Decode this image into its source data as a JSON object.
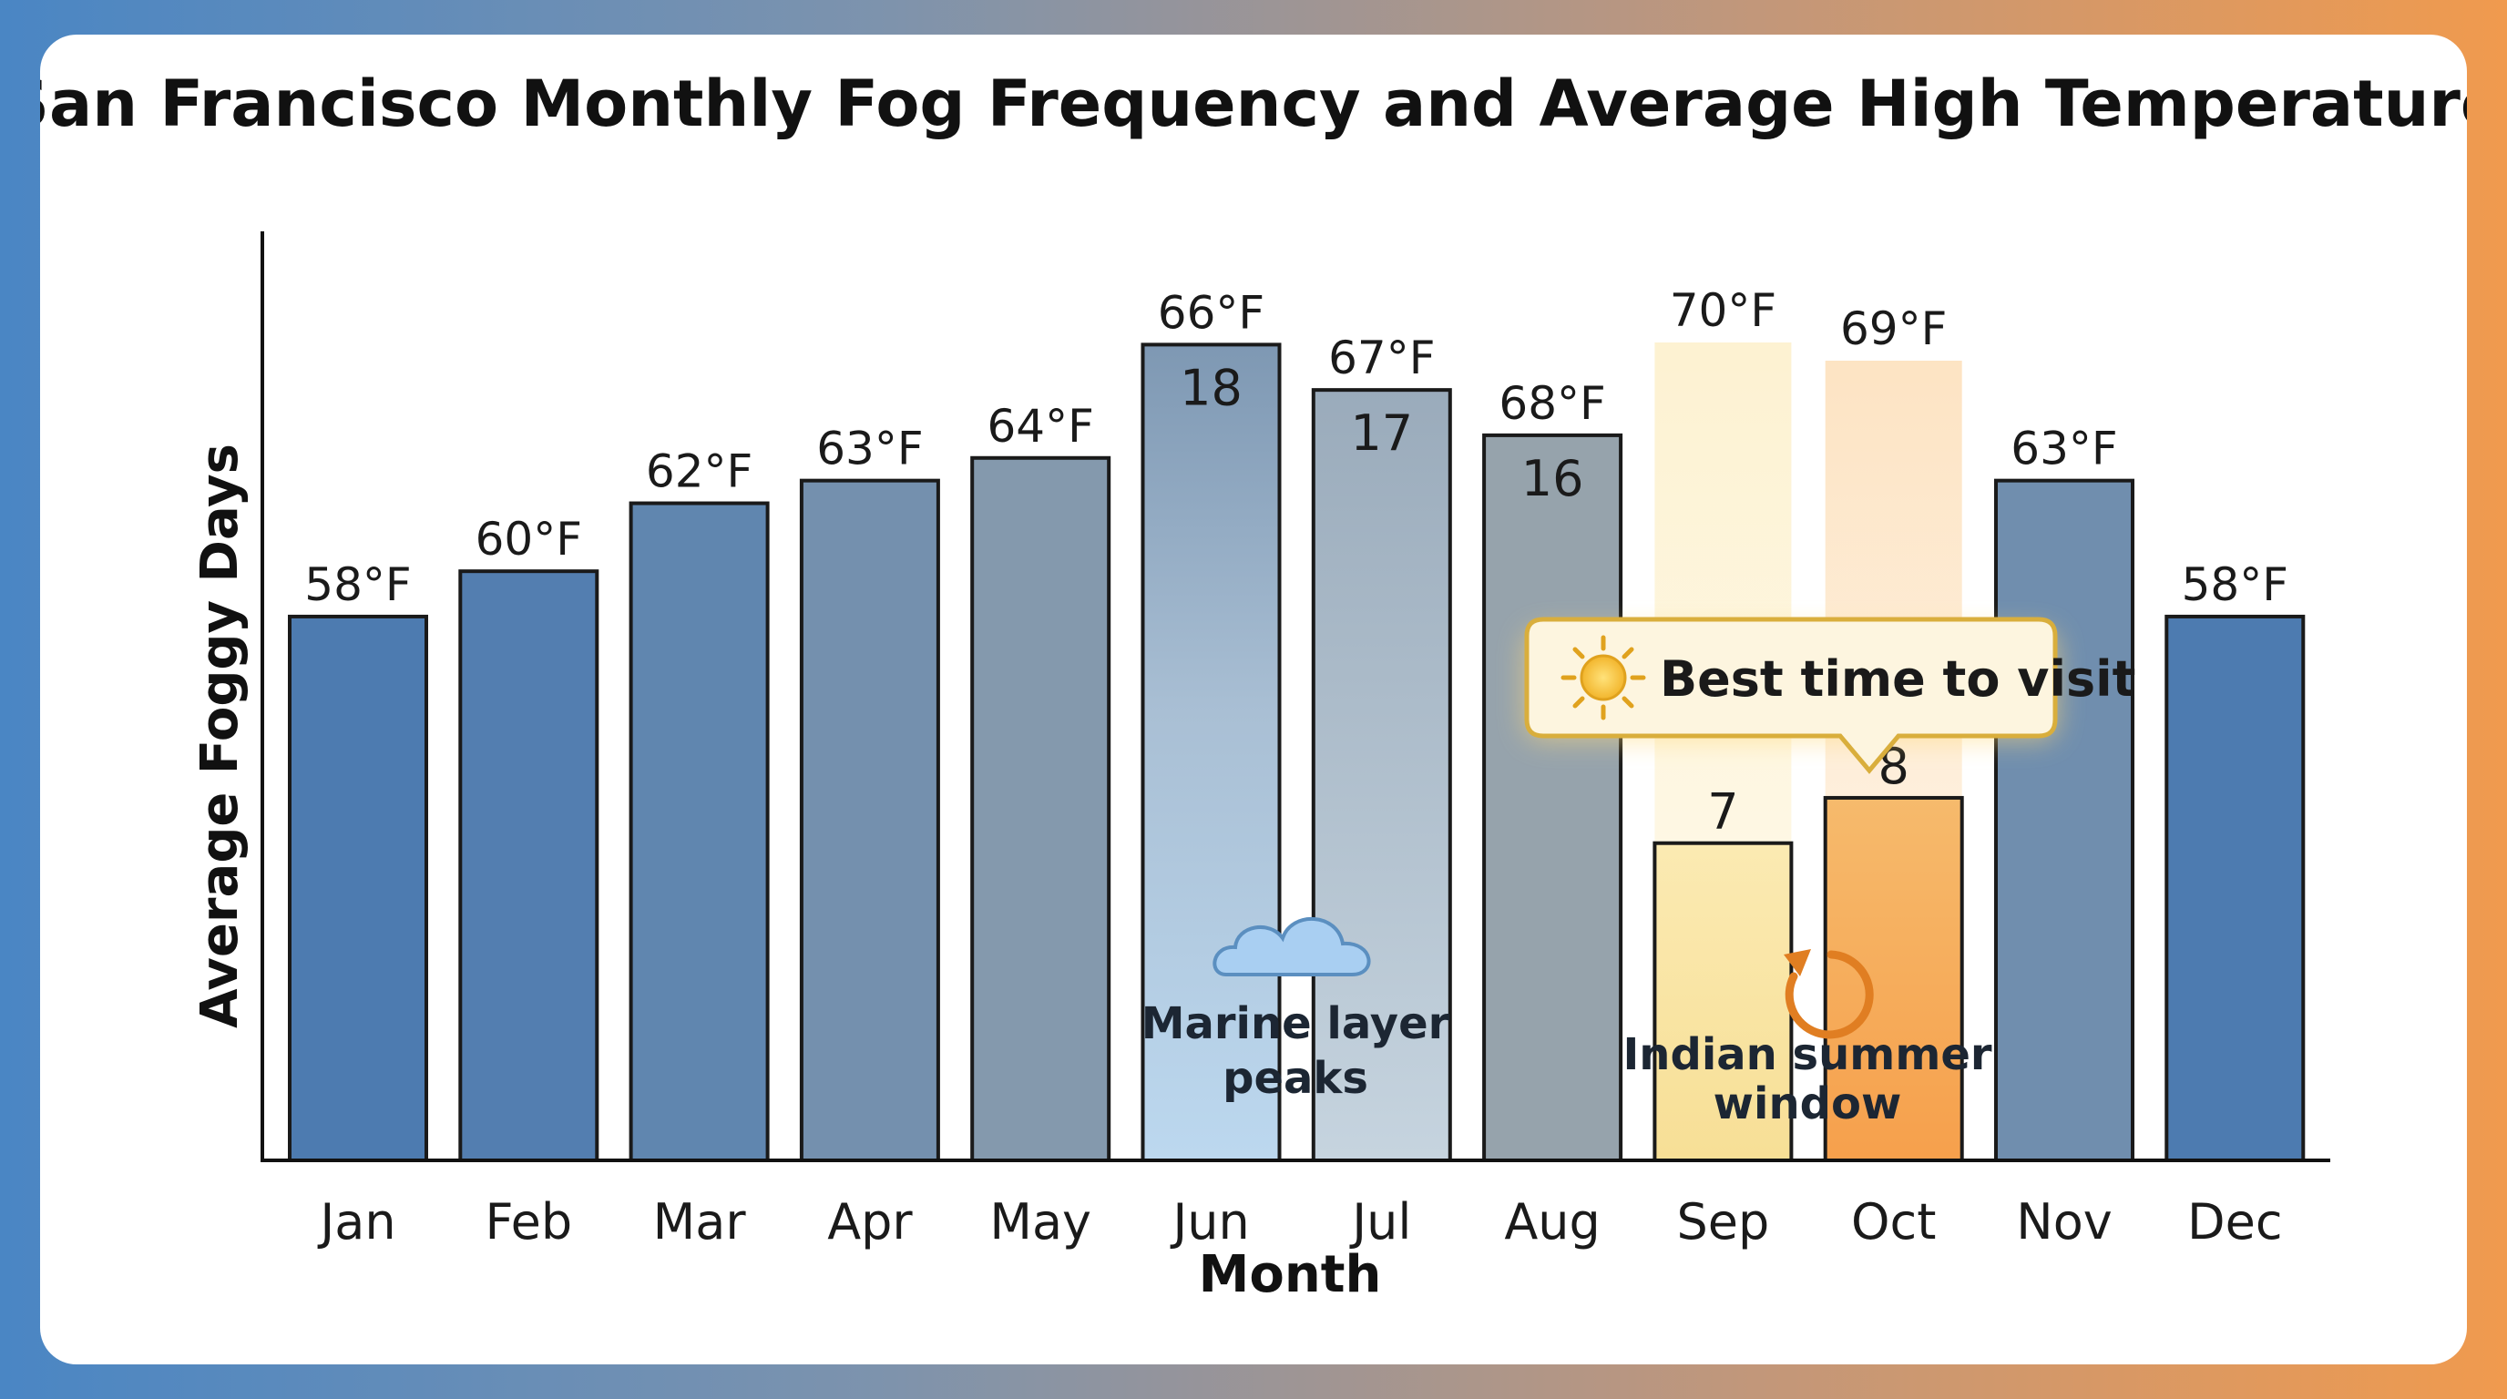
{
  "chart_data": {
    "type": "bar",
    "title": "San Francisco Monthly Fog Frequency and Average High Temperature",
    "xlabel": "Month",
    "ylabel": "Average Foggy Days",
    "ylim": [
      0,
      20.5
    ],
    "categories": [
      "Jan",
      "Feb",
      "Mar",
      "Apr",
      "May",
      "Jun",
      "Jul",
      "Aug",
      "Sep",
      "Oct",
      "Nov",
      "Dec"
    ],
    "series": [
      {
        "values": [
          12,
          13,
          14.5,
          15,
          15.5,
          18,
          17,
          16,
          7,
          8,
          15,
          12
        ]
      }
    ],
    "value_labels": [
      "",
      "",
      "",
      "",
      "",
      "18",
      "17",
      "16",
      "7",
      "8",
      "",
      ""
    ],
    "temperature_labels": [
      "58°F",
      "60°F",
      "62°F",
      "63°F",
      "64°F",
      "66°F",
      "67°F",
      "68°F",
      "70°F",
      "69°F",
      "63°F",
      "58°F"
    ],
    "highlight_months": [
      "Sep",
      "Oct"
    ],
    "grid": false,
    "annotations": {
      "marine_layer": {
        "month": "Jun",
        "lines": [
          "Marine layer",
          "peaks"
        ],
        "icon": "cloud-icon"
      },
      "indian_summer": {
        "month": "Sep-Oct",
        "lines": [
          "Indian summer",
          "window"
        ],
        "icon": "cycle-arrow-icon"
      },
      "best_time": {
        "text": "Best time to visit",
        "icon": "sun-icon"
      }
    },
    "colors": {
      "bar_cool": "#4d7bb0",
      "bar_warm": "#9aa5ac",
      "bar_sep": "#fbe7a6",
      "bar_oct": "#f8a956",
      "callout_border": "#d9ae3c"
    }
  }
}
